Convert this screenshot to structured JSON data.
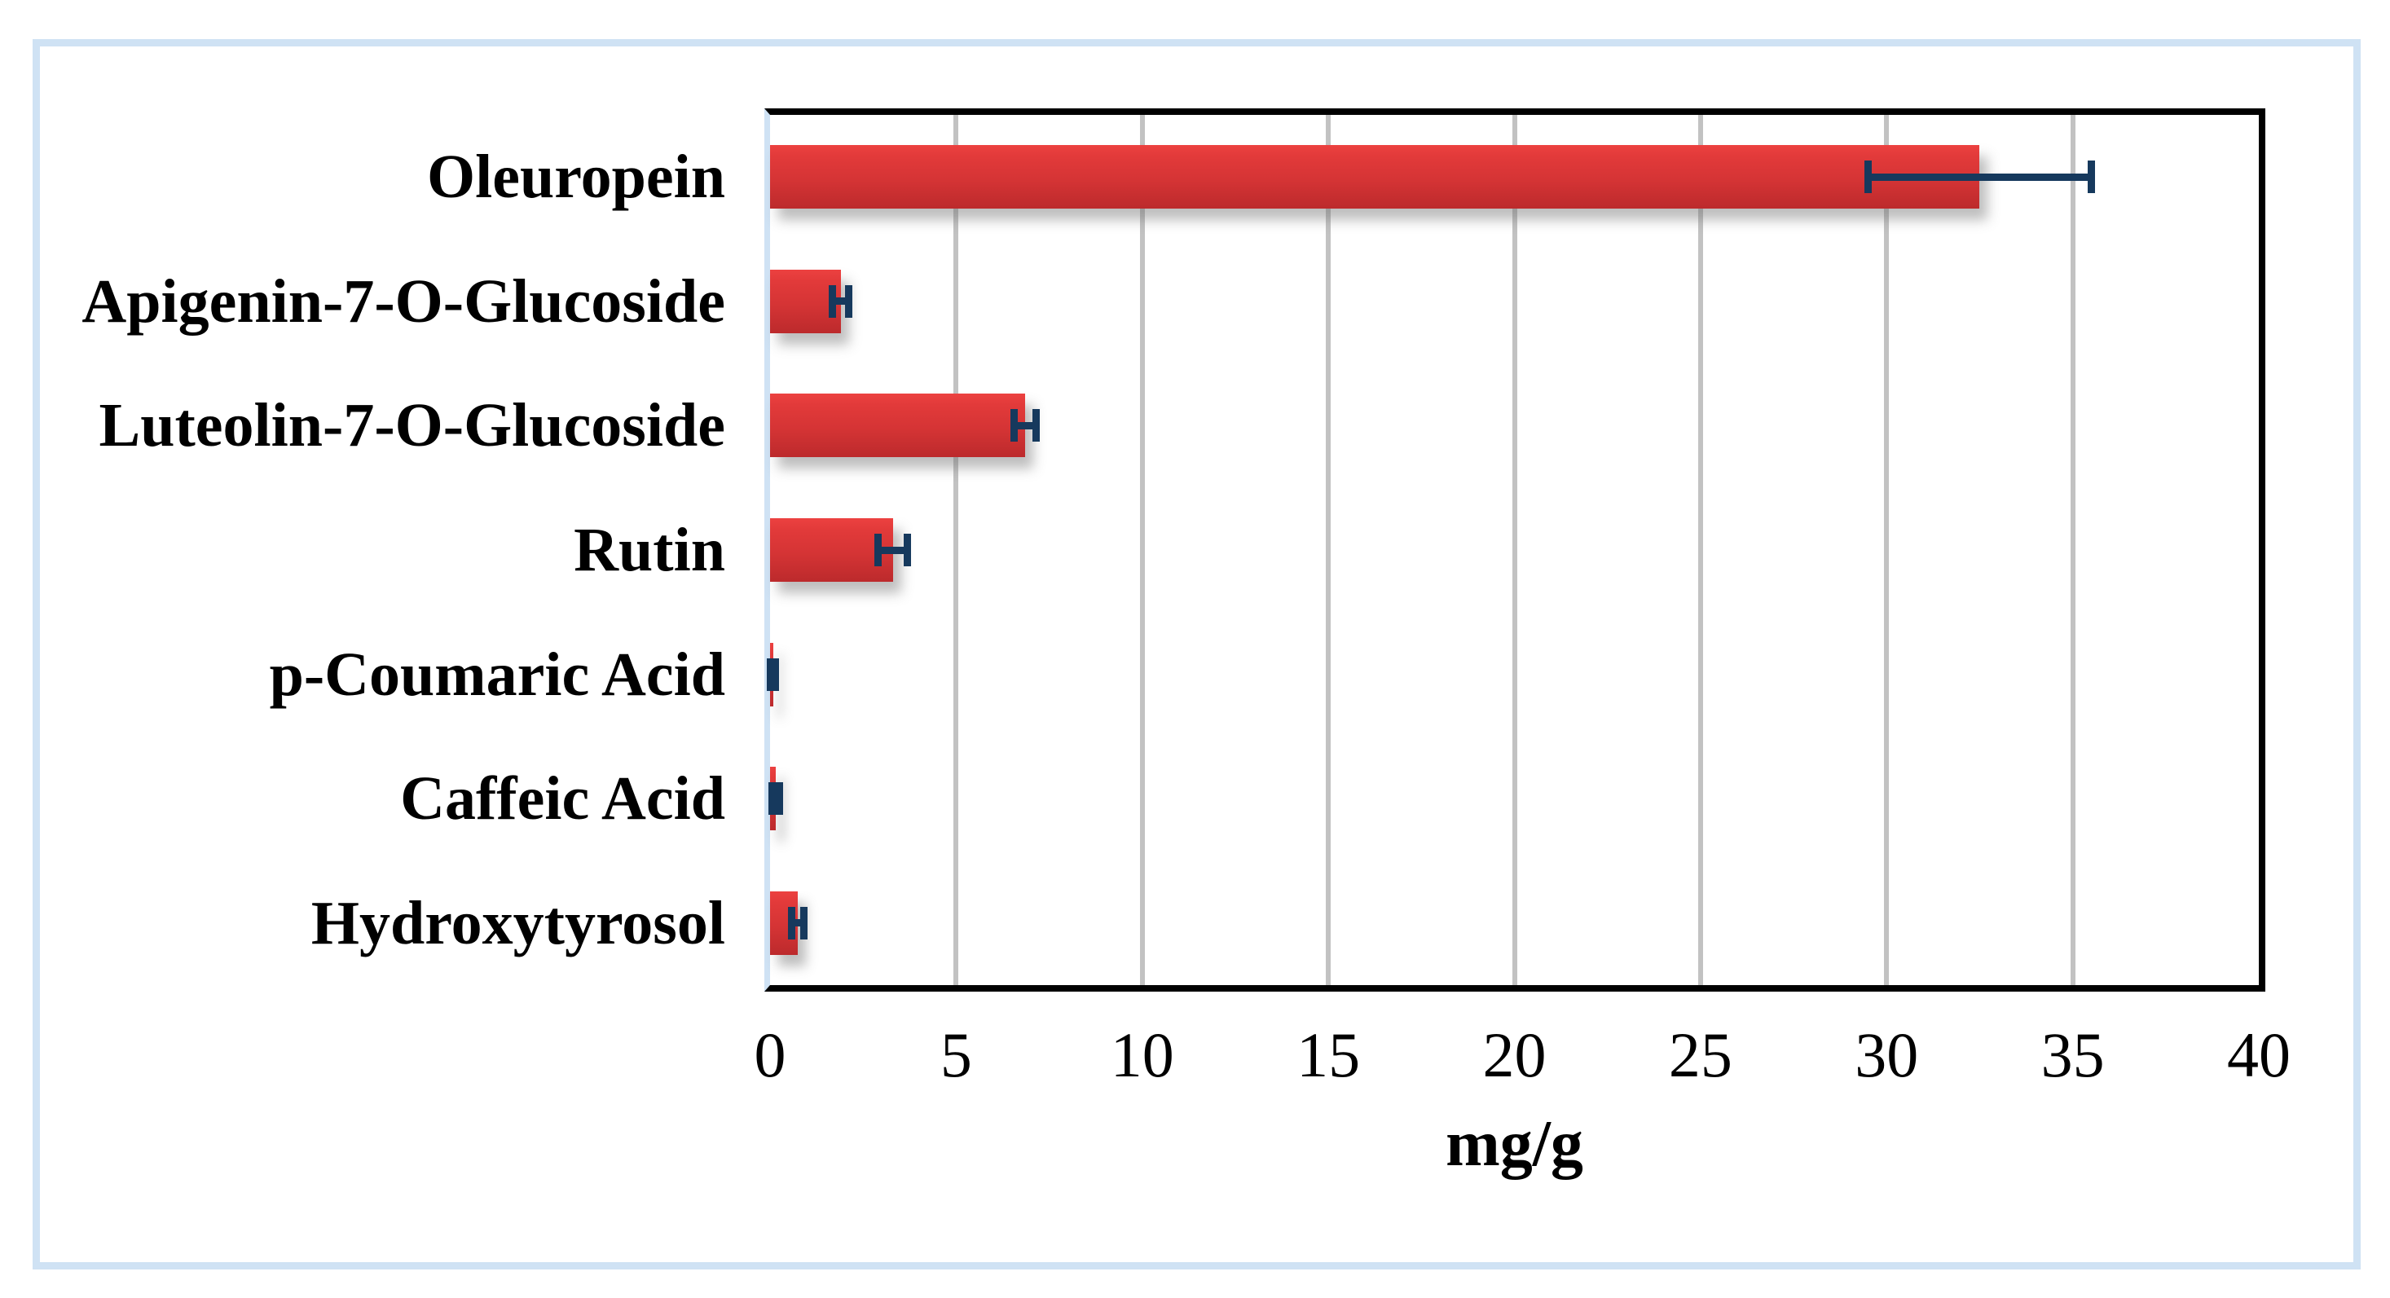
{
  "chart_data": {
    "type": "bar",
    "orientation": "horizontal",
    "title": "",
    "xlabel": "mg/g",
    "ylabel": "",
    "categories": [
      "Oleuropein",
      "Apigenin-7-O-Glucoside",
      "Luteolin-7-O-Glucoside",
      "Rutin",
      "p-Coumaric Acid",
      "Caffeic Acid",
      "Hydroxytyrosol"
    ],
    "values": [
      32.5,
      1.9,
      6.85,
      3.3,
      0.08,
      0.15,
      0.75
    ],
    "errors": [
      3.0,
      0.22,
      0.3,
      0.4,
      0.06,
      0.1,
      0.16
    ],
    "xlim": [
      0,
      40
    ],
    "xticks": [
      0,
      5,
      10,
      15,
      20,
      25,
      30,
      35,
      40
    ],
    "grid": "vertical-gridlines-on",
    "legend": "none",
    "colors": {
      "bar_top": "#ec4140",
      "bar_bottom": "#bc2a2c",
      "error_bar": "#16395d",
      "gridline": "#c2c2c2",
      "axis_border": "#000000",
      "y_axis_line": "#cfe2f4",
      "frame": "#cfe2f4",
      "background": "#ffffff"
    }
  }
}
